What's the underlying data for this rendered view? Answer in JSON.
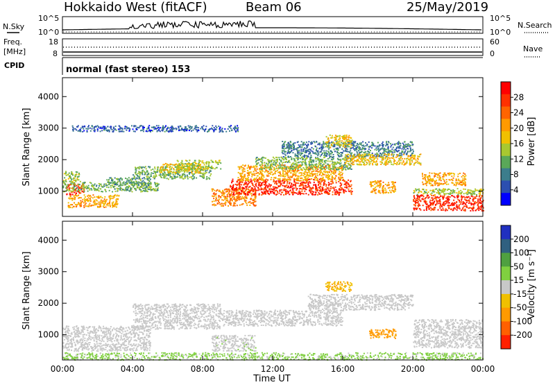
{
  "header": {
    "station": "Hokkaido West (fitACF)",
    "beam": "Beam 06",
    "date": "25/May/2019"
  },
  "summary_panels": {
    "nsky_label": "N.Sky",
    "nsearch_label": "N.Search",
    "freq_label_1": "Freq.",
    "freq_label_2": "[MHz]",
    "nave_label": "Nave",
    "cpid_label": "CPID",
    "noise_ticks": [
      "10^5",
      "10^0"
    ],
    "noise_ticks_right": [
      "10^5",
      "10^0"
    ],
    "freq_ticks": [
      "18",
      "8"
    ],
    "nave_ticks": [
      "60",
      "0"
    ],
    "cpid_text": "normal (fast stereo) 153"
  },
  "colorbars": {
    "power": {
      "label": "Power [dB]",
      "ticks": [
        "28",
        "24",
        "20",
        "16",
        "12",
        "8",
        "4"
      ],
      "colors": [
        "#ff0000",
        "#ff3000",
        "#ff6400",
        "#ff9a00",
        "#f0c000",
        "#a8c830",
        "#5aa858",
        "#3c7d8c",
        "#2c4fb0",
        "#0000ff"
      ]
    },
    "velocity": {
      "label": "Velocity [m s⁻¹]",
      "ticks": [
        "200",
        "100",
        "50",
        "15",
        "-15",
        "-50",
        "-100",
        "-200"
      ],
      "colors": [
        "#2030c0",
        "#306080",
        "#4fa040",
        "#80d040",
        "#c8c8c8",
        "#f0c000",
        "#ff9a00",
        "#ff6000",
        "#ff2000"
      ]
    }
  },
  "chart_data": [
    {
      "type": "heatmap",
      "panel": "power",
      "ylabel": "Slant Range [km]",
      "y_ticks": [
        1000,
        2000,
        3000,
        4000
      ],
      "ylim": [
        200,
        4600
      ],
      "xlim": [
        "00:00",
        "24:00"
      ],
      "colorbar_label": "Power [dB]",
      "colorbar_range": [
        0,
        32
      ],
      "regions": [
        {
          "x": [
            0.3,
            3.2
          ],
          "y": [
            500,
            900
          ],
          "value": 20
        },
        {
          "x": [
            0.2,
            1.2
          ],
          "y": [
            900,
            1250
          ],
          "value": 28
        },
        {
          "x": [
            0.0,
            5.5
          ],
          "y": [
            1000,
            1300
          ],
          "value": 12
        },
        {
          "x": [
            0.0,
            1.0
          ],
          "y": [
            1300,
            1650
          ],
          "value": 14
        },
        {
          "x": [
            2.5,
            5.0
          ],
          "y": [
            1200,
            1450
          ],
          "value": 10
        },
        {
          "x": [
            4.0,
            8.5
          ],
          "y": [
            1400,
            1800
          ],
          "value": 12
        },
        {
          "x": [
            5.5,
            8.0
          ],
          "y": [
            1600,
            1900
          ],
          "value": 18
        },
        {
          "x": [
            6.5,
            9.0
          ],
          "y": [
            1700,
            2000
          ],
          "value": 14
        },
        {
          "x": [
            8.5,
            11.0
          ],
          "y": [
            550,
            1100
          ],
          "value": 22
        },
        {
          "x": [
            9.5,
            16.5
          ],
          "y": [
            900,
            1400
          ],
          "value": 28
        },
        {
          "x": [
            10.0,
            16.0
          ],
          "y": [
            1350,
            1850
          ],
          "value": 20
        },
        {
          "x": [
            11.0,
            16.5
          ],
          "y": [
            1700,
            2100
          ],
          "value": 12
        },
        {
          "x": [
            12.5,
            20.0
          ],
          "y": [
            2100,
            2600
          ],
          "value": 8
        },
        {
          "x": [
            15.0,
            16.5
          ],
          "y": [
            2400,
            2800
          ],
          "value": 18
        },
        {
          "x": [
            16.0,
            20.5
          ],
          "y": [
            1850,
            2200
          ],
          "value": 18
        },
        {
          "x": [
            17.5,
            19.0
          ],
          "y": [
            950,
            1350
          ],
          "value": 20
        },
        {
          "x": [
            20.0,
            24.0
          ],
          "y": [
            400,
            900
          ],
          "value": 28
        },
        {
          "x": [
            20.5,
            23.0
          ],
          "y": [
            1200,
            1600
          ],
          "value": 20
        },
        {
          "x": [
            20.0,
            24.0
          ],
          "y": [
            900,
            1100
          ],
          "value": 14
        },
        {
          "x": [
            0.5,
            10.0
          ],
          "y": [
            2900,
            3100
          ],
          "value": 6
        }
      ]
    },
    {
      "type": "heatmap",
      "panel": "velocity",
      "ylabel": "Slant Range [km]",
      "xlabel": "Time UT",
      "x_ticks": [
        "00:00",
        "04:00",
        "08:00",
        "12:00",
        "16:00",
        "20:00",
        "00:00"
      ],
      "y_ticks": [
        1000,
        2000,
        3000,
        4000
      ],
      "ylim": [
        200,
        4600
      ],
      "xlim": [
        "00:00",
        "24:00"
      ],
      "colorbar_label": "Velocity [m s⁻¹]",
      "colorbar_range": [
        -200,
        200
      ],
      "regions": [
        {
          "x": [
            0.0,
            5.0
          ],
          "y": [
            500,
            1300
          ],
          "value": 0
        },
        {
          "x": [
            4.0,
            9.0
          ],
          "y": [
            1200,
            2000
          ],
          "value": 0
        },
        {
          "x": [
            9.0,
            16.0
          ],
          "y": [
            1300,
            1800
          ],
          "value": 0
        },
        {
          "x": [
            14.0,
            20.0
          ],
          "y": [
            1800,
            2300
          ],
          "value": 0
        },
        {
          "x": [
            15.0,
            16.5
          ],
          "y": [
            2400,
            2700
          ],
          "value": -60
        },
        {
          "x": [
            17.5,
            19.0
          ],
          "y": [
            900,
            1200
          ],
          "value": -80
        },
        {
          "x": [
            20.0,
            24.0
          ],
          "y": [
            600,
            1500
          ],
          "value": 0
        },
        {
          "x": [
            0.0,
            24.0
          ],
          "y": [
            220,
            450
          ],
          "value": 30
        },
        {
          "x": [
            8.5,
            11.0
          ],
          "y": [
            500,
            1000
          ],
          "value": 10
        }
      ]
    }
  ]
}
